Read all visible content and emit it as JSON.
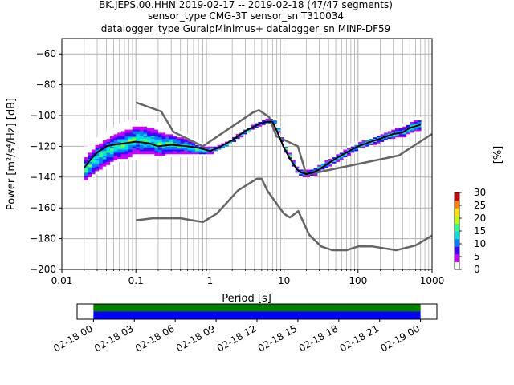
{
  "chart_data": [
    {
      "type": "heatmap",
      "title_lines": [
        "BK.JEPS.00.HHN   2019-02-17 -- 2019-02-18  (47/47 segments)",
        "sensor_type CMG-3T sensor_sn T310034",
        "datalogger_type GuralpMinimus+ datalogger_sn MINP-DF59"
      ],
      "xlabel": "Period [s]",
      "ylabel": "Power [m²/s⁴/Hz] [dB]",
      "xscale": "log",
      "xlim": [
        0.01,
        1000
      ],
      "ylim": [
        -200,
        -50
      ],
      "xticks": [
        0.01,
        0.1,
        1,
        10,
        100,
        1000
      ],
      "xtick_labels": [
        "0.01",
        "0.1",
        "1",
        "10",
        "100",
        "1000"
      ],
      "yticks": [
        -200,
        -180,
        -160,
        -140,
        -120,
        -100,
        -80,
        -60
      ],
      "ytick_labels": [
        "−200",
        "−180",
        "−160",
        "−140",
        "−120",
        "−100",
        "−80",
        "−60"
      ],
      "grid": true,
      "colorbar": {
        "label": "[%]",
        "min": 0,
        "max": 30,
        "ticks": [
          0,
          5,
          10,
          15,
          20,
          25,
          30
        ],
        "tick_labels": [
          "0",
          "5",
          "10",
          "15",
          "20",
          "25",
          "30"
        ],
        "colors": [
          "#ffffff",
          "#cc00ff",
          "#4000ff",
          "#0080ff",
          "#00e0e0",
          "#30ff80",
          "#c0ff00",
          "#ffe000",
          "#ff8000",
          "#d00000"
        ]
      },
      "psd_band": {
        "period": [
          0.02,
          0.03,
          0.05,
          0.07,
          0.1,
          0.15,
          0.2,
          0.3,
          0.5,
          0.7,
          1,
          1.5,
          2,
          3,
          4,
          5,
          6,
          7,
          8,
          10,
          13,
          15,
          17,
          20,
          25,
          30,
          40,
          50,
          70,
          100,
          150,
          200,
          300,
          400,
          500,
          700
        ],
        "median": [
          -135,
          -127,
          -121,
          -119,
          -116,
          -117,
          -119,
          -119,
          -121,
          -123,
          -123,
          -120,
          -116,
          -110,
          -107,
          -105,
          -104,
          -104,
          -110,
          -122,
          -133,
          -137,
          -138,
          -138,
          -137,
          -134,
          -131,
          -128,
          -124,
          -120,
          -117,
          -115,
          -112,
          -111,
          -108,
          -106
        ],
        "lower": [
          -144,
          -138,
          -131,
          -130,
          -129,
          -129,
          -128,
          -127,
          -127,
          -126,
          -126,
          -122,
          -118,
          -112,
          -109,
          -107,
          -106,
          -106,
          -112,
          -125,
          -136,
          -140,
          -141,
          -141,
          -140,
          -137,
          -134,
          -131,
          -127,
          -123,
          -120,
          -118,
          -115,
          -114,
          -112,
          -111
        ],
        "upper": [
          -121,
          -113,
          -107,
          -104,
          -103,
          -104,
          -105,
          -109,
          -114,
          -118,
          -120,
          -118,
          -114,
          -108,
          -105,
          -103,
          -102,
          -102,
          -108,
          -119,
          -130,
          -134,
          -135,
          -135,
          -133,
          -130,
          -127,
          -124,
          -120,
          -117,
          -113,
          -110,
          -107,
          -105,
          -102,
          -101
        ]
      },
      "series": [
        {
          "role": "mean",
          "color": "#000000",
          "x": [
            0.02,
            0.025,
            0.03,
            0.04,
            0.05,
            0.07,
            0.1,
            0.15,
            0.2,
            0.3,
            0.5,
            0.7,
            1,
            1.3,
            2,
            3,
            4,
            5,
            6,
            7,
            8,
            10,
            12,
            15,
            17,
            20,
            25,
            30,
            40,
            50,
            70,
            100,
            150,
            200,
            300,
            400,
            500,
            700
          ],
          "y": [
            -134,
            -128,
            -124,
            -120,
            -119,
            -118,
            -117,
            -118,
            -120,
            -119,
            -120,
            -121,
            -123,
            -121,
            -116,
            -110,
            -107,
            -105,
            -104,
            -104,
            -110,
            -121,
            -128,
            -135,
            -137,
            -138,
            -137,
            -135,
            -131,
            -128,
            -124,
            -120,
            -117,
            -115,
            -112,
            -111,
            -108,
            -106
          ]
        },
        {
          "role": "new high noise model",
          "color": "#666666",
          "x": [
            0.1,
            0.22,
            0.32,
            0.8,
            3.8,
            4.6,
            6.3,
            7.9,
            15.4,
            20,
            354.8,
            1000
          ],
          "y": [
            -91.5,
            -97.4,
            -110.5,
            -120,
            -98,
            -96.5,
            -101,
            -113.5,
            -120,
            -138.5,
            -126,
            -112
          ]
        },
        {
          "role": "new low noise model",
          "color": "#666666",
          "x": [
            0.1,
            0.17,
            0.4,
            0.8,
            1.24,
            2.4,
            4.3,
            5,
            6,
            10,
            12,
            15.6,
            21.9,
            31.6,
            45,
            70,
            101,
            154,
            328,
            600,
            1000
          ],
          "y": [
            -168,
            -166.7,
            -166.7,
            -169.2,
            -163.7,
            -148.6,
            -141.1,
            -141.1,
            -149,
            -163.8,
            -166.2,
            -162.1,
            -177.5,
            -185,
            -187.5,
            -187.5,
            -185,
            -185,
            -187.5,
            -184.4,
            -178
          ]
        }
      ]
    },
    {
      "type": "timeline",
      "xtick_labels": [
        "02-18 00",
        "02-18 03",
        "02-18 06",
        "02-18 09",
        "02-18 12",
        "02-18 15",
        "02-18 18",
        "02-18 21",
        "02-19 00"
      ],
      "xtick_hours": [
        0,
        3,
        6,
        9,
        12,
        15,
        18,
        21,
        24
      ],
      "xlim_hours": [
        -1.2,
        25.2
      ],
      "coverage": [
        {
          "color": "#007f00",
          "start_hour": 0,
          "end_hour": 24
        },
        {
          "color": "#0000ff",
          "start_hour": 0,
          "end_hour": 24
        }
      ]
    }
  ]
}
